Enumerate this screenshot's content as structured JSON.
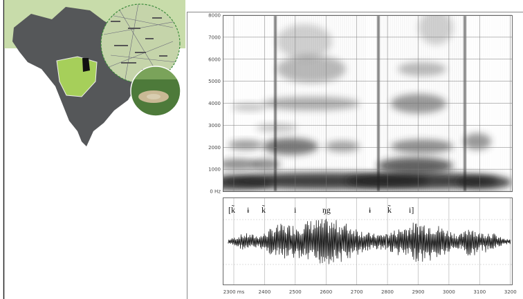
{
  "chart_data": {
    "type": "spectrogram",
    "ylim": [
      0,
      8000
    ],
    "yticks": [
      {
        "value": 0,
        "label": "0 Hz"
      },
      1000,
      2000,
      3000,
      4000,
      5000,
      6000,
      7000,
      8000
    ],
    "xlim": [
      2264,
      3205
    ],
    "xticks": [
      {
        "value": 2300,
        "label": "2300 ms"
      },
      2400,
      2500,
      2600,
      2700,
      2800,
      2900,
      3000,
      3100,
      3200
    ],
    "grid": true,
    "annotations": [
      "[k̃",
      "ɨ",
      "k̃",
      "i",
      "ŋg",
      "ɨ",
      "k̃",
      "i]"
    ]
  }
}
